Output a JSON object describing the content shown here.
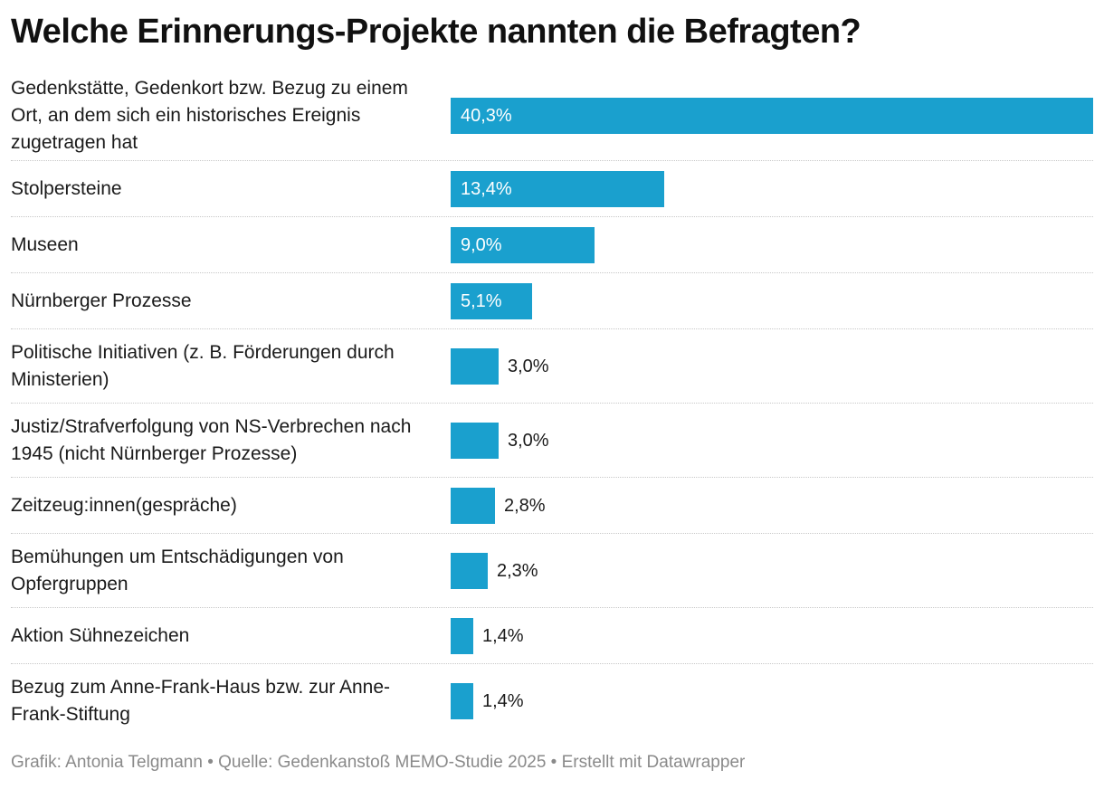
{
  "title": "Welche Erinnerungs-Projekte nannten die Befragten?",
  "footer": "Grafik: Antonia Telgmann • Quelle: Gedenkanstoß MEMO-Studie 2025 • Erstellt mit Datawrapper",
  "colors": {
    "bar": "#1aa0ce",
    "text": "#1a1a1a",
    "footer": "#8a8a8a"
  },
  "chart_data": {
    "type": "bar",
    "orientation": "horizontal",
    "title": "Welche Erinnerungs-Projekte nannten die Befragten?",
    "xlabel": "",
    "ylabel": "",
    "xlim": [
      0,
      40.3
    ],
    "grid": false,
    "legend": "none",
    "categories": [
      "Gedenkstätte, Gedenkort bzw. Bezug zu einem Ort, an dem sich ein historisches Ereignis zugetragen hat",
      "Stolpersteine",
      "Museen",
      "Nürnberger Prozesse",
      "Politische Initiativen (z. B. Förderungen durch Ministerien)",
      "Justiz/Strafverfolgung von NS-Verbrechen nach 1945 (nicht Nürnberger Prozesse)",
      "Zeitzeug:innen(gespräche)",
      "Bemühungen um Entschädigungen von Opfergruppen",
      "Aktion Sühnezeichen",
      "Bezug zum Anne-Frank-Haus bzw. zur Anne-Frank-Stiftung"
    ],
    "values": [
      40.3,
      13.4,
      9.0,
      5.1,
      3.0,
      3.0,
      2.8,
      2.3,
      1.4,
      1.4
    ],
    "value_labels": [
      "40,3%",
      "13,4%",
      "9,0%",
      "5,1%",
      "3,0%",
      "3,0%",
      "2,8%",
      "2,3%",
      "1,4%",
      "1,4%"
    ]
  }
}
